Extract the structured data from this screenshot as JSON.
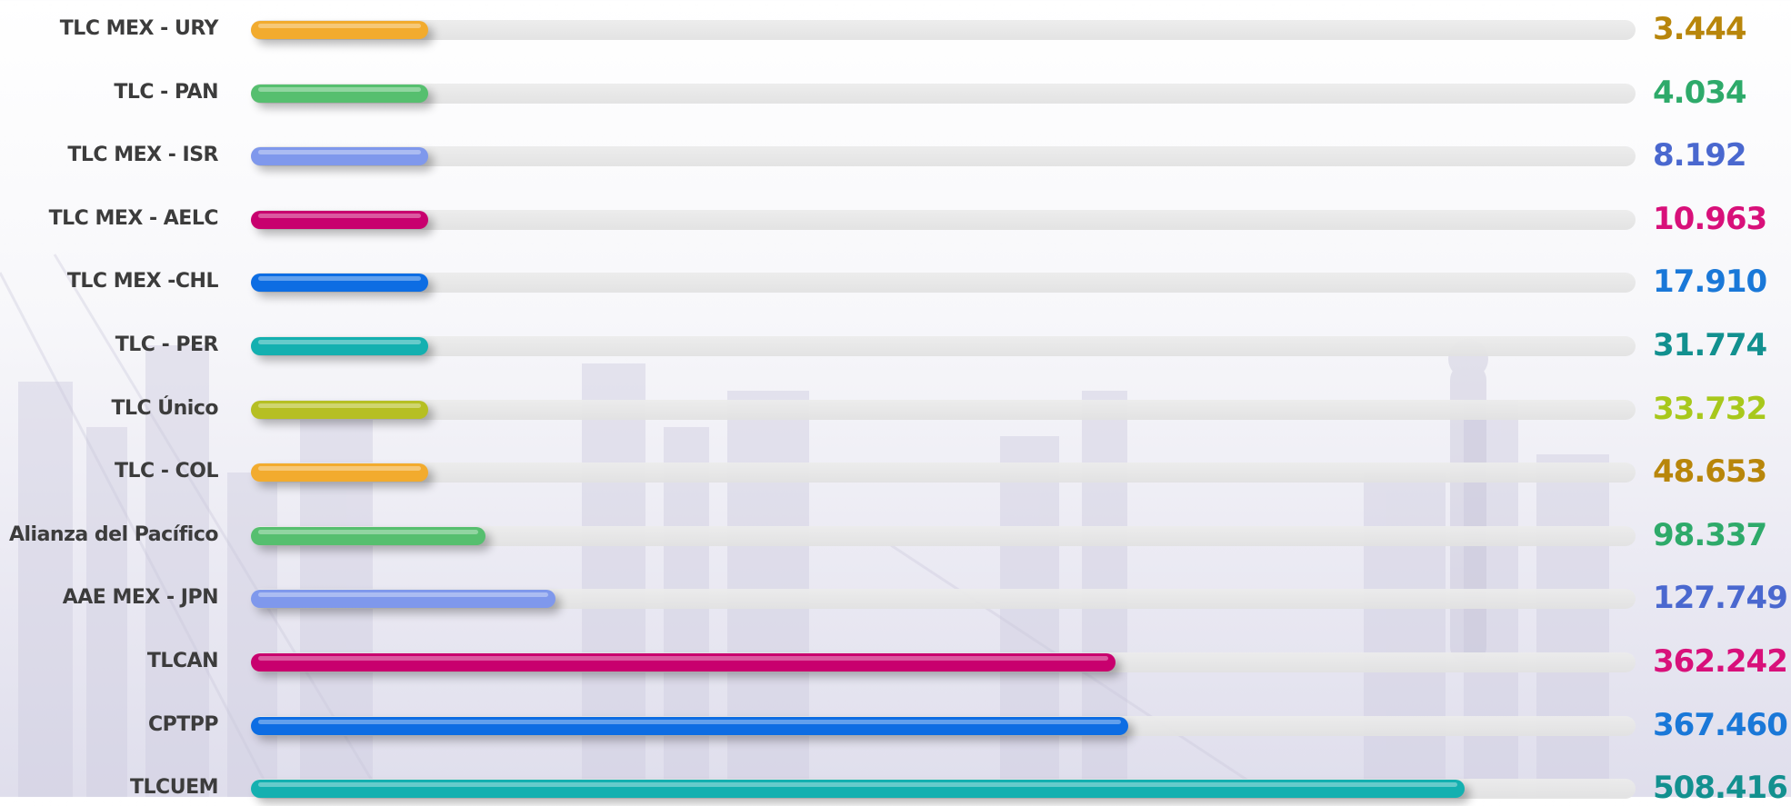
{
  "chart_data": {
    "type": "bar",
    "orientation": "horizontal",
    "title": "",
    "xlabel": "",
    "ylabel": "",
    "xlim": [
      0,
      580000
    ],
    "grid": false,
    "legend": "none",
    "categories": [
      "TLC MEX - URY",
      "TLC - PAN",
      "TLC MEX - ISR",
      "TLC MEX - AELC",
      "TLC MEX -CHL",
      "TLC - PER",
      "TLC Único",
      "TLC - COL",
      "Alianza del Pacífico",
      "AAE MEX - JPN",
      "TLCAN",
      "CPTPP",
      "TLCUEM"
    ],
    "values": [
      3444,
      4034,
      8192,
      10963,
      17910,
      31774,
      33732,
      48653,
      98337,
      127749,
      362242,
      367460,
      508416
    ],
    "value_labels": [
      "3.444",
      "4.034",
      "8.192",
      "10.963",
      "17.910",
      "31.774",
      "33.732",
      "48.653",
      "98.337",
      "127.749",
      "362.242",
      "367.460",
      "508.416"
    ],
    "bar_colors": [
      "#f2ab2e",
      "#56bf6f",
      "#7f98ec",
      "#c8006e",
      "#0d6de3",
      "#14b0b0",
      "#b6bf23",
      "#f2ab2e",
      "#56bf6f",
      "#7f98ec",
      "#c8006e",
      "#0d6de3",
      "#14b0b0"
    ],
    "value_colors": [
      "#b8860b",
      "#2eaa6a",
      "#4a68cf",
      "#d8107a",
      "#1a78d8",
      "#12908f",
      "#a8c81c",
      "#b8860b",
      "#2eaa6a",
      "#4a68cf",
      "#d8107a",
      "#1a78d8",
      "#12908f"
    ]
  }
}
